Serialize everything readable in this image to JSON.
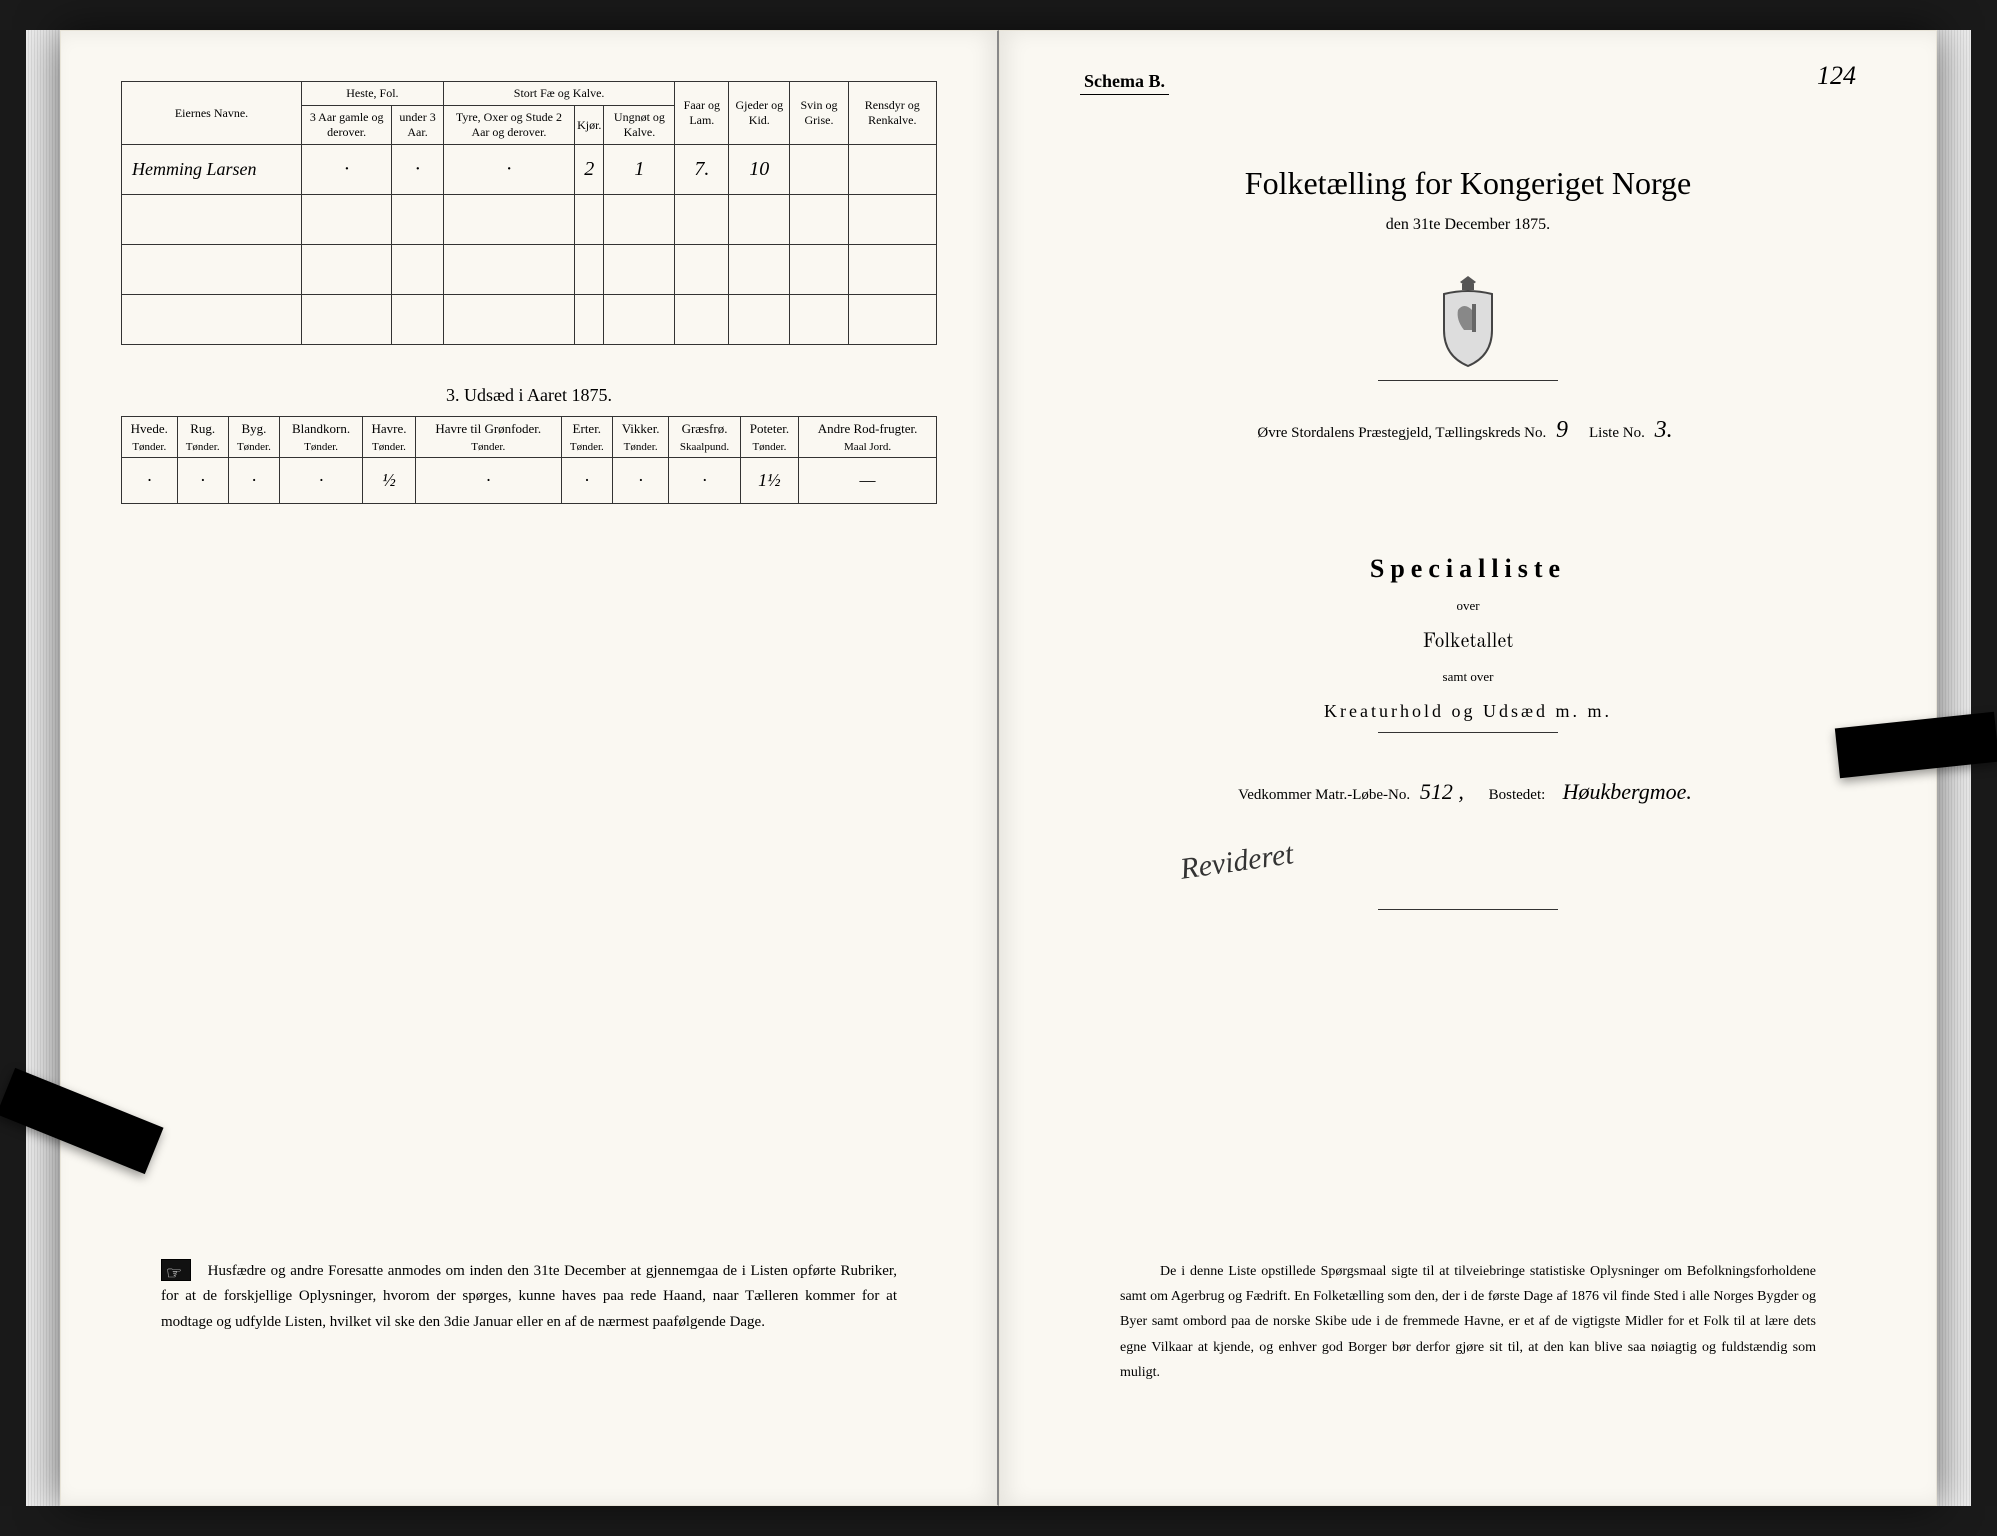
{
  "left": {
    "livestock": {
      "owner_header": "Eiernes Navne.",
      "group_heste": "Heste, Fol.",
      "group_stortfae": "Stort Fæ og Kalve.",
      "col_heste1": "3 Aar gamle og derover.",
      "col_heste2": "under 3 Aar.",
      "col_fae1": "Tyre, Oxer og Stude 2 Aar og derover.",
      "col_fae2": "Kjør.",
      "col_fae3": "Ungnøt og Kalve.",
      "col_faar": "Faar og Lam.",
      "col_gjeder": "Gjeder og Kid.",
      "col_svin": "Svin og Grise.",
      "col_rensdyr": "Rensdyr og Renkalve.",
      "row1": {
        "name": "Hemming Larsen",
        "heste1": "·",
        "heste2": "·",
        "fae1": "·",
        "fae2": "2",
        "fae3": "1",
        "faar": "7.",
        "gjeder": "10",
        "svin": "",
        "rensdyr": ""
      }
    },
    "seed_title": "3.  Udsæd i Aaret 1875.",
    "seed": {
      "columns": [
        {
          "name": "Hvede.",
          "unit": "Tønder."
        },
        {
          "name": "Rug.",
          "unit": "Tønder."
        },
        {
          "name": "Byg.",
          "unit": "Tønder."
        },
        {
          "name": "Blandkorn.",
          "unit": "Tønder."
        },
        {
          "name": "Havre.",
          "unit": "Tønder."
        },
        {
          "name": "Havre til Grønfoder.",
          "unit": "Tønder."
        },
        {
          "name": "Erter.",
          "unit": "Tønder."
        },
        {
          "name": "Vikker.",
          "unit": "Tønder."
        },
        {
          "name": "Græsfrø.",
          "unit": "Skaalpund."
        },
        {
          "name": "Poteter.",
          "unit": "Tønder."
        },
        {
          "name": "Andre Rod-frugter.",
          "unit": "Maal Jord."
        }
      ],
      "row": [
        "·",
        "·",
        "·",
        "·",
        "½",
        "·",
        "·",
        "·",
        "·",
        "1½",
        "—"
      ]
    },
    "footnote": "Husfædre og andre Foresatte anmodes om inden den 31te December at gjennemgaa de i Listen opførte Rubriker, for at de forskjellige Oplysninger, hvorom der spørges, kunne haves paa rede Haand, naar Tælleren kommer for at modtage og udfylde Listen, hvilket vil ske den 3die Januar eller en af de nærmest paafølgende Dage."
  },
  "right": {
    "schema": "Schema B.",
    "folio": "124",
    "title": "Folketælling for Kongeriget Norge",
    "date": "den 31te December 1875.",
    "parish_label_pre": "Øvre Stordalens",
    "parish_label_mid": "Præstegjeld, Tællingskreds No.",
    "kreds_no": "9",
    "liste_label": "Liste No.",
    "liste_no": "3.",
    "speciallist": "Specialliste",
    "over1": "over",
    "folketallet": "Folketallet",
    "samt_over": "samt over",
    "kreatur": "Kreaturhold og Udsæd m. m.",
    "matr_label": "Vedkommer Matr.-Løbe-No.",
    "matr_no": "512 ,",
    "bostedet_label": "Bostedet:",
    "bostedet": "Høukbergmoe.",
    "signature": "Revideret",
    "footnote": "De i denne Liste opstillede Spørgsmaal sigte til at tilveiebringe statistiske Oplysninger om Befolkningsforholdene samt om Agerbrug og Fædrift.  En Folketælling som den, der i de første Dage af 1876 vil finde Sted i alle Norges Bygder og Byer samt ombord paa de norske Skibe ude i de fremmede Havne, er et af de vigtigste Midler for et Folk til at lære dets egne Vilkaar at kjende, og enhver god Borger bør derfor gjøre sit til, at den kan blive saa nøiagtig og fuldstændig som muligt."
  }
}
